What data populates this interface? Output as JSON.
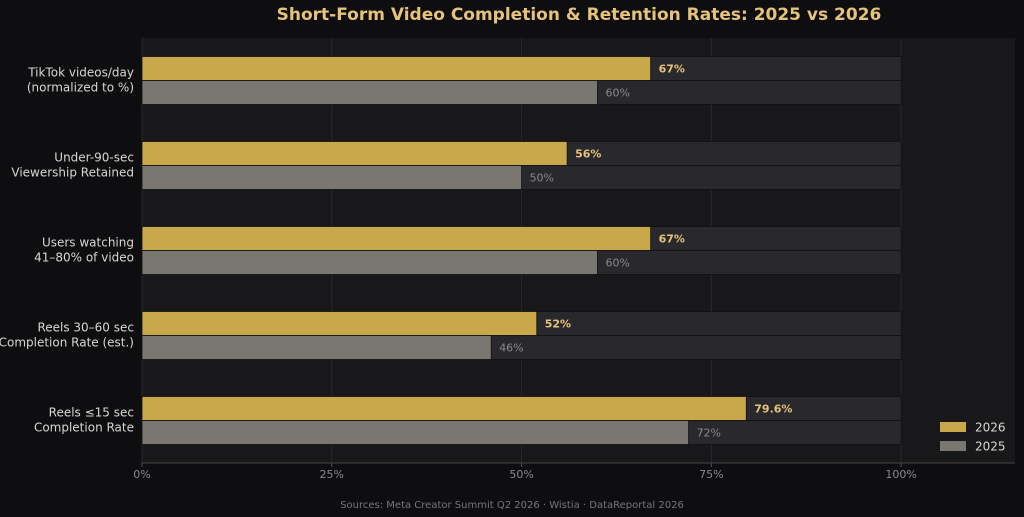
{
  "chart_data": {
    "type": "hbar",
    "title": "Short-Form Video Completion & Retention Rates: 2025 vs 2026",
    "source": "Sources: Meta Creator Summit Q2 2026 · Wistia · DataReportal 2026",
    "categories": [
      [
        "TikTok videos/day",
        "(normalized to %)"
      ],
      [
        "Under-90-sec",
        "Viewership Retained"
      ],
      [
        "Users watching",
        "41–80% of video"
      ],
      [
        "Reels 30–60 sec",
        "Completion Rate (est.)"
      ],
      [
        "Reels ≤15 sec",
        "Completion Rate"
      ]
    ],
    "series": [
      {
        "name": "2026",
        "color": "#c9a84c",
        "values": [
          67,
          56,
          67,
          52,
          79.6
        ],
        "value_labels": [
          "67%",
          "56%",
          "67%",
          "52%",
          "79.6%"
        ]
      },
      {
        "name": "2025",
        "color": "#7a7770",
        "values": [
          60,
          50,
          60,
          46,
          72
        ],
        "value_labels": [
          "60%",
          "50%",
          "60%",
          "46%",
          "72%"
        ]
      }
    ],
    "xlim": [
      0,
      115
    ],
    "xticks": [
      {
        "value": 0,
        "label": "0%"
      },
      {
        "value": 25,
        "label": "25%"
      },
      {
        "value": 50,
        "label": "50%"
      },
      {
        "value": 75,
        "label": "75%"
      },
      {
        "value": 100,
        "label": "100%"
      }
    ],
    "grid": true,
    "legend": "lower-right"
  }
}
